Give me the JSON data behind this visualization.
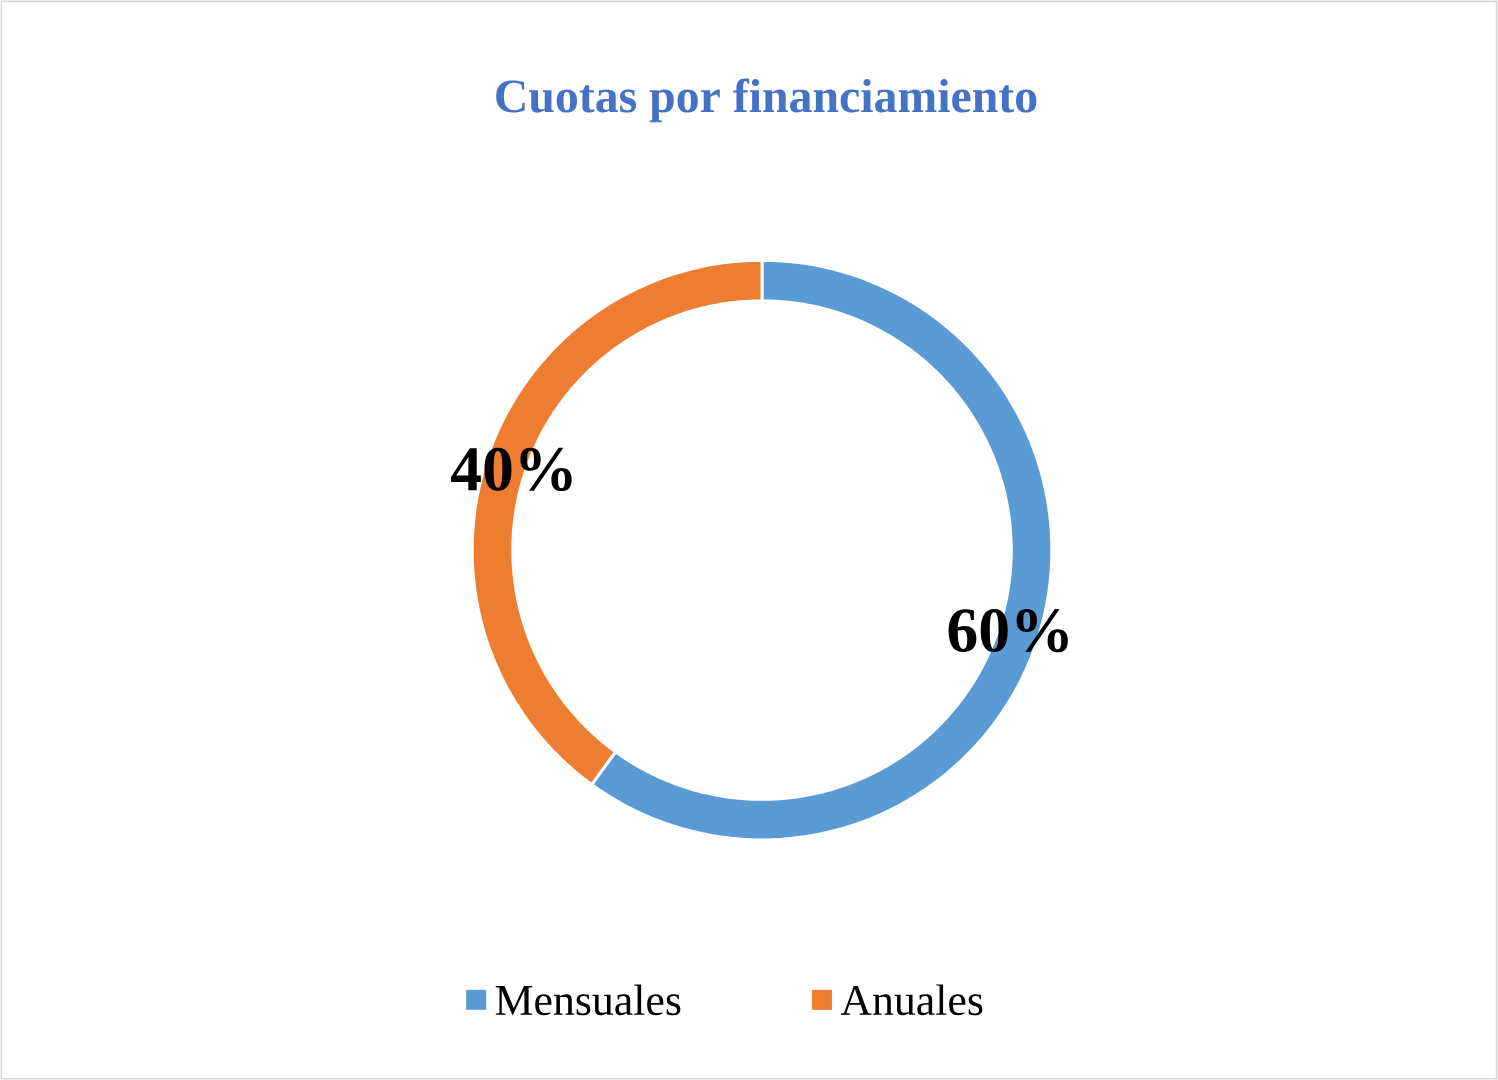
{
  "chart_data": {
    "type": "donut",
    "title": "Cuotas por financiamiento",
    "categories": [
      "Mensuales",
      "Anuales"
    ],
    "values": [
      60,
      40
    ],
    "colors": [
      "#5b9bd5",
      "#ed7d31"
    ],
    "value_labels": [
      "60%",
      "40%"
    ],
    "legend": "bottom"
  }
}
